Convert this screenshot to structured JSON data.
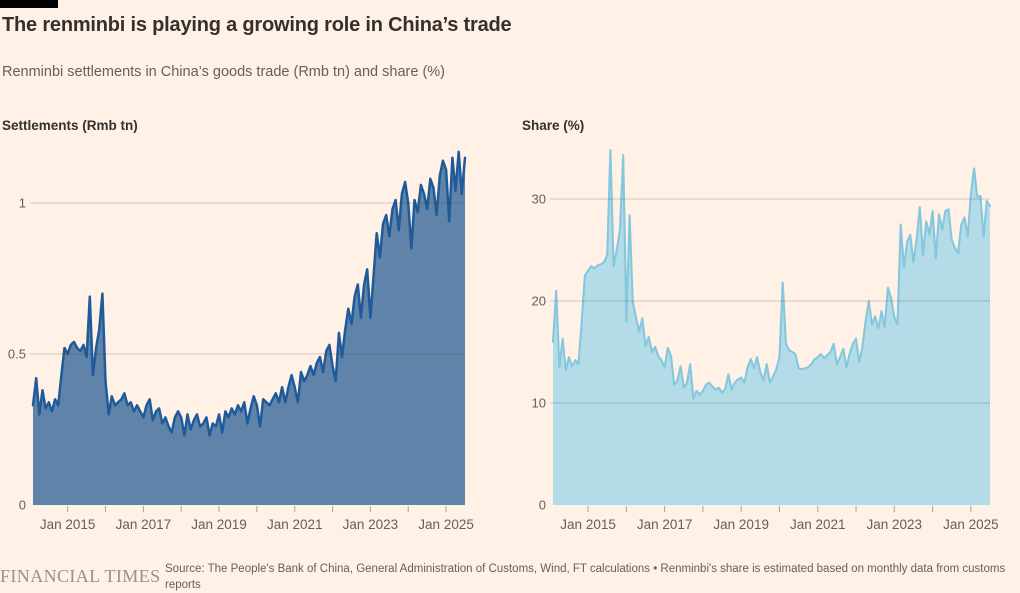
{
  "header": {
    "title": "The renminbi is playing a growing role in China’s trade",
    "subtitle": "Renminbi settlements in China’s goods trade (Rmb tn) and share (%)"
  },
  "footer": {
    "brand": "FINANCIAL TIMES",
    "source": "Source: The People's Bank of China, General Administration of Customs, Wind, FT calculations • Renminbi's share is estimated based on monthly data from customs reports"
  },
  "colors": {
    "background": "#FFF1E5",
    "title_text": "#33302E",
    "muted_text": "#66605B",
    "grid_stroke": "#33302E",
    "grid_opacity": "0.22",
    "tick_stroke": "#66605B"
  },
  "chart_data": [
    {
      "type": "area",
      "panel": "left",
      "title": "Settlements (Rmb tn)",
      "frequency": "monthly",
      "x_start": "2014-02",
      "x_end": "2025-07",
      "ylim": [
        0,
        1.2
      ],
      "grid": "horizontal",
      "line_color": "#1F5B99",
      "fill_color": "#6083A9",
      "yticks": [
        {
          "v": 0,
          "label": "0",
          "grid": false
        },
        {
          "v": 0.5,
          "label": "0.5",
          "grid": true
        },
        {
          "v": 1,
          "label": "1",
          "grid": true
        }
      ],
      "tick_years": [
        2015,
        2016,
        2017,
        2018,
        2019,
        2020,
        2021,
        2022,
        2023,
        2024,
        2025
      ],
      "x_tick_labels": [
        "Jan 2015",
        "Jan 2017",
        "Jan 2019",
        "Jan 2021",
        "Jan 2023",
        "Jan 2025"
      ],
      "values": [
        0.33,
        0.42,
        0.3,
        0.38,
        0.32,
        0.34,
        0.31,
        0.35,
        0.33,
        0.43,
        0.52,
        0.5,
        0.53,
        0.54,
        0.52,
        0.51,
        0.53,
        0.49,
        0.69,
        0.43,
        0.52,
        0.58,
        0.7,
        0.41,
        0.3,
        0.36,
        0.33,
        0.34,
        0.35,
        0.37,
        0.33,
        0.34,
        0.31,
        0.33,
        0.31,
        0.29,
        0.33,
        0.35,
        0.28,
        0.31,
        0.32,
        0.27,
        0.29,
        0.26,
        0.24,
        0.29,
        0.31,
        0.29,
        0.23,
        0.3,
        0.25,
        0.28,
        0.3,
        0.26,
        0.27,
        0.29,
        0.23,
        0.27,
        0.26,
        0.3,
        0.24,
        0.31,
        0.29,
        0.32,
        0.3,
        0.33,
        0.31,
        0.34,
        0.27,
        0.32,
        0.36,
        0.33,
        0.26,
        0.35,
        0.34,
        0.33,
        0.35,
        0.37,
        0.34,
        0.39,
        0.34,
        0.39,
        0.43,
        0.39,
        0.34,
        0.44,
        0.41,
        0.43,
        0.46,
        0.43,
        0.47,
        0.49,
        0.44,
        0.51,
        0.53,
        0.46,
        0.41,
        0.57,
        0.49,
        0.58,
        0.65,
        0.6,
        0.69,
        0.73,
        0.62,
        0.73,
        0.78,
        0.62,
        0.76,
        0.9,
        0.82,
        0.93,
        0.96,
        0.89,
        0.98,
        1.01,
        0.91,
        1.03,
        1.07,
        1.0,
        0.85,
        1.01,
        0.97,
        1.06,
        1.03,
        0.98,
        1.08,
        1.05,
        0.96,
        1.09,
        1.14,
        1.11,
        0.94,
        1.15,
        1.04,
        1.17,
        1.03,
        1.15
      ]
    },
    {
      "type": "area",
      "panel": "right",
      "title": "Share (%)",
      "frequency": "monthly",
      "x_start": "2014-02",
      "x_end": "2025-07",
      "ylim": [
        0,
        36
      ],
      "grid": "horizontal",
      "line_color": "#85C7DD",
      "fill_color": "#B3DBE8",
      "yticks": [
        {
          "v": 0,
          "label": "0",
          "grid": false
        },
        {
          "v": 10,
          "label": "10",
          "grid": true
        },
        {
          "v": 20,
          "label": "20",
          "grid": true
        },
        {
          "v": 30,
          "label": "30",
          "grid": true
        }
      ],
      "tick_years": [
        2015,
        2016,
        2017,
        2018,
        2019,
        2020,
        2021,
        2022,
        2023,
        2024,
        2025
      ],
      "x_tick_labels": [
        "Jan 2015",
        "Jan 2017",
        "Jan 2019",
        "Jan 2021",
        "Jan 2023",
        "Jan 2025"
      ],
      "values": [
        16,
        21,
        13.5,
        16.3,
        13.2,
        14.5,
        13.6,
        14.2,
        13.8,
        18,
        22.5,
        23,
        23.4,
        23.2,
        23.5,
        23.6,
        23.8,
        24.5,
        34.8,
        23.4,
        25,
        27,
        34.3,
        18,
        28.4,
        20,
        18.4,
        17,
        18.3,
        15.6,
        16.5,
        15,
        15.5,
        14.6,
        14.2,
        13.5,
        15.4,
        14.6,
        11.8,
        12.2,
        13.6,
        11.5,
        12,
        13.8,
        10.4,
        11.2,
        10.8,
        11.2,
        11.8,
        12,
        11.6,
        11.3,
        11.5,
        11,
        11.4,
        12.8,
        11.3,
        12,
        12.3,
        12.5,
        12,
        13.5,
        14.3,
        13.4,
        14.5,
        13,
        12.2,
        13.8,
        12,
        12.6,
        13.3,
        14.5,
        21.8,
        15.8,
        15.2,
        15,
        14.8,
        13.4,
        13.3,
        13.4,
        13.5,
        13.8,
        14.3,
        14.5,
        14.8,
        14.4,
        14.7,
        15,
        15.8,
        13.8,
        14.5,
        15.3,
        13.5,
        14.8,
        15.8,
        16.3,
        14,
        15.5,
        18,
        20,
        17.7,
        18.5,
        17.3,
        19,
        17.5,
        21.3,
        20.3,
        18.4,
        17.7,
        27.5,
        23.3,
        25.8,
        26.5,
        23.8,
        26,
        29.2,
        24.5,
        27.8,
        26.5,
        28.8,
        24.2,
        28.5,
        27,
        28.8,
        29,
        26,
        25.2,
        24.7,
        27.5,
        28.2,
        26.3,
        30.5,
        33,
        30.2,
        30.3,
        26.3,
        29.8,
        29.3
      ]
    }
  ]
}
